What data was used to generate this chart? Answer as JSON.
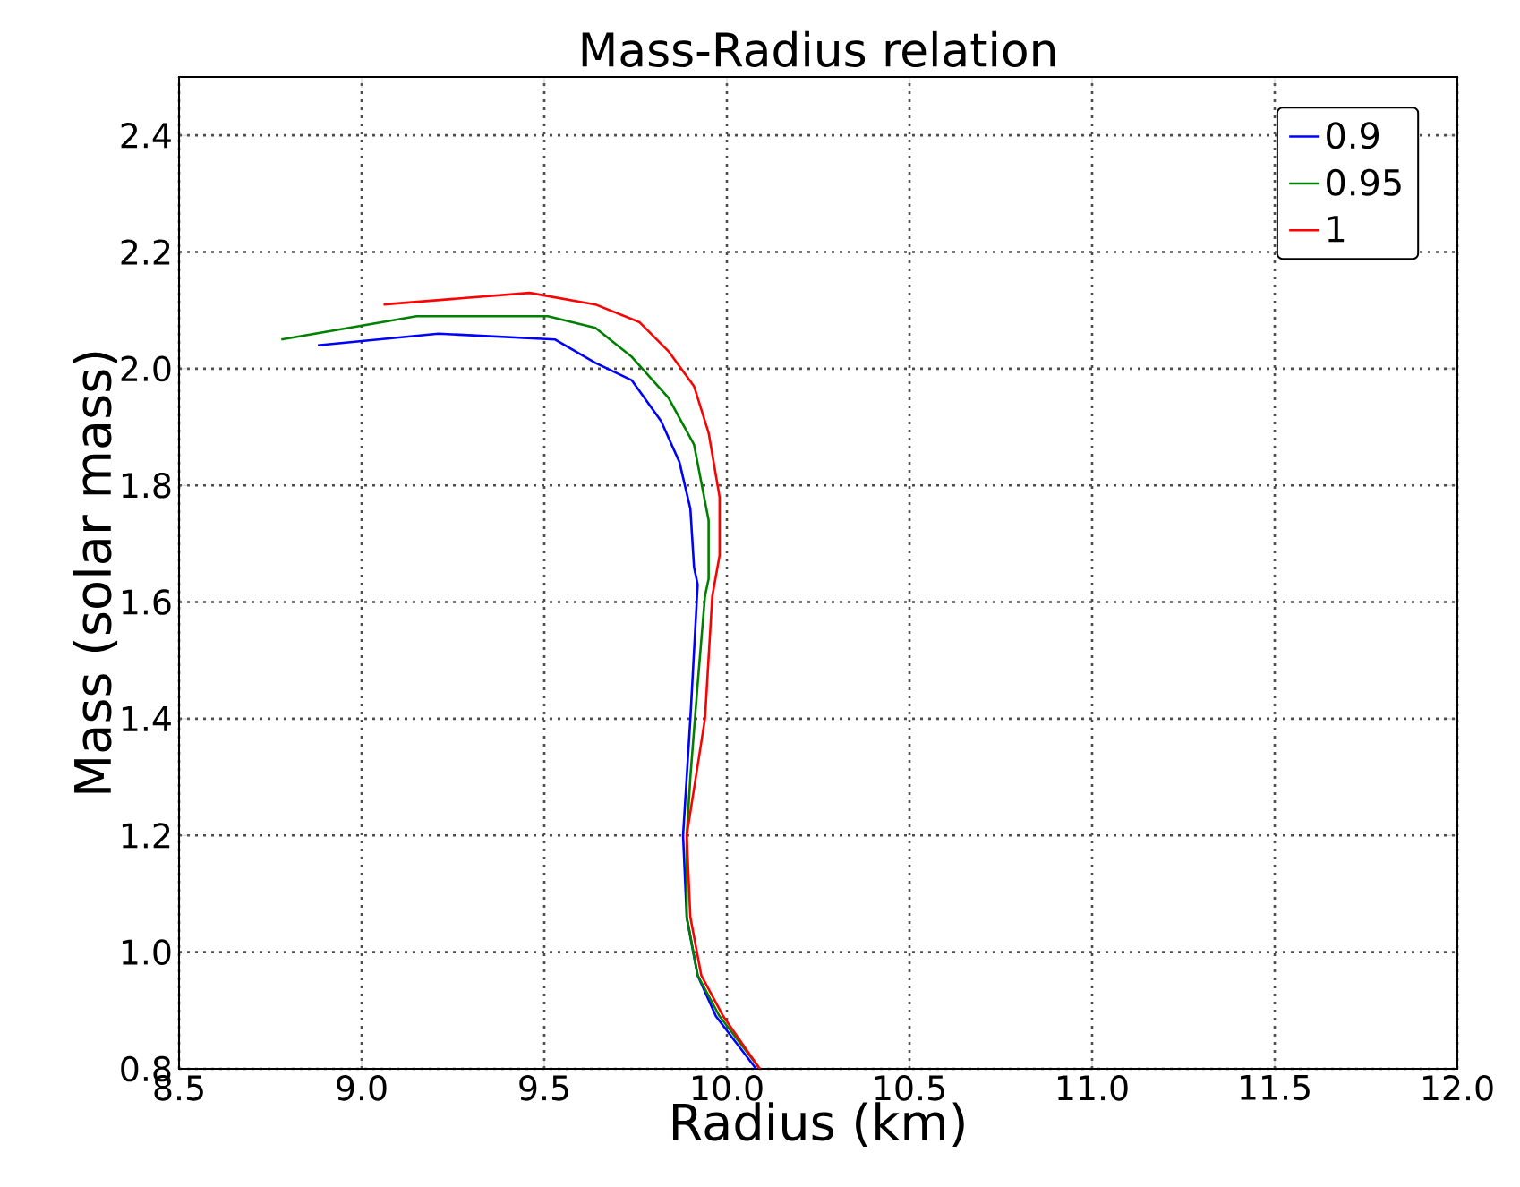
{
  "chart_data": {
    "type": "line",
    "title": "Mass-Radius relation",
    "xlabel": "Radius (km)",
    "ylabel": "Mass (solar mass)",
    "xlim": [
      8.5,
      12.0
    ],
    "ylim": [
      0.8,
      2.5
    ],
    "xticks": [
      8.5,
      {
        "value": 9,
        "label": "9.0"
      },
      9.5,
      {
        "value": 10,
        "label": "10.0"
      },
      10.5,
      {
        "value": 11,
        "label": "11.0"
      },
      11.5,
      {
        "value": 12,
        "label": "12.0"
      }
    ],
    "yticks": [
      0.8,
      {
        "value": 1,
        "label": "1.0"
      },
      1.2,
      1.4,
      1.6,
      1.8,
      {
        "value": 2,
        "label": "2.0"
      },
      2.2,
      2.4
    ],
    "grid": true,
    "legend": "top right",
    "line_style": "solid",
    "marker": "none",
    "series": [
      {
        "name": "0.9",
        "color": "#0000ff",
        "x": [
          8.88,
          9.21,
          9.53,
          9.64,
          9.74,
          9.82,
          9.87,
          9.9,
          9.91,
          9.92,
          9.9,
          9.88,
          9.89,
          9.92,
          9.97,
          10.08
        ],
        "values": [
          2.04,
          2.06,
          2.05,
          2.01,
          1.98,
          1.91,
          1.84,
          1.76,
          1.66,
          1.63,
          1.4,
          1.2,
          1.06,
          0.96,
          0.89,
          0.8
        ]
      },
      {
        "name": "0.95",
        "color": "#008000",
        "x": [
          8.78,
          9.15,
          9.51,
          9.64,
          9.74,
          9.84,
          9.91,
          9.95,
          9.95,
          9.94,
          9.92,
          9.9,
          9.89,
          9.89,
          9.92,
          9.98,
          10.09
        ],
        "values": [
          2.05,
          2.09,
          2.09,
          2.07,
          2.02,
          1.95,
          1.87,
          1.74,
          1.64,
          1.61,
          1.46,
          1.3,
          1.2,
          1.06,
          0.96,
          0.89,
          0.8
        ]
      },
      {
        "name": "1",
        "color": "#ff0000",
        "x": [
          9.06,
          9.46,
          9.64,
          9.76,
          9.84,
          9.91,
          9.95,
          9.98,
          9.98,
          9.96,
          9.94,
          9.91,
          9.89,
          9.9,
          9.93,
          9.99,
          10.09
        ],
        "values": [
          2.11,
          2.13,
          2.11,
          2.08,
          2.03,
          1.97,
          1.89,
          1.78,
          1.68,
          1.61,
          1.4,
          1.28,
          1.2,
          1.06,
          0.96,
          0.89,
          0.8
        ]
      }
    ]
  }
}
